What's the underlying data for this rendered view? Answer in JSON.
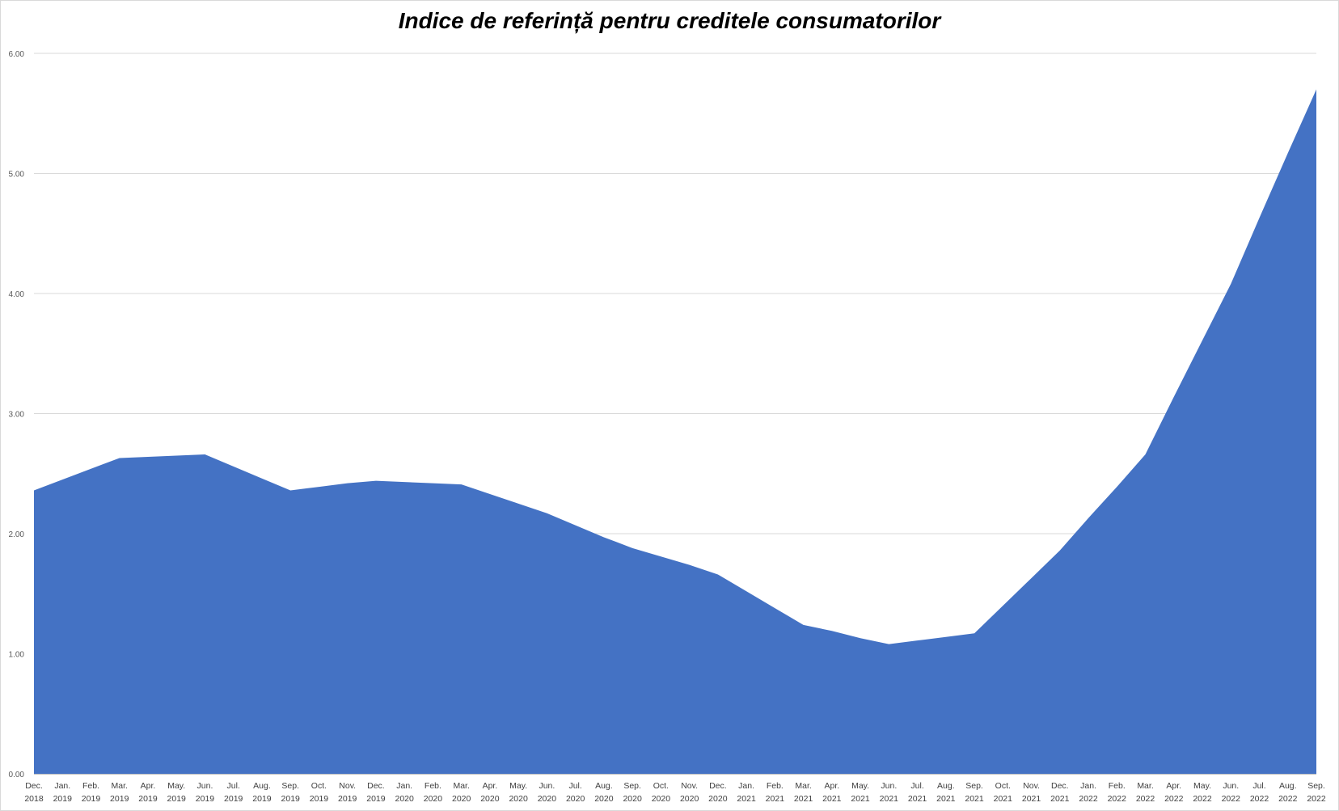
{
  "chart_data": {
    "type": "area",
    "title": "Indice de referință pentru creditele consumatorilor",
    "xlabel": "",
    "ylabel": "",
    "ylim": [
      0,
      6
    ],
    "yticks": [
      "0.00",
      "1.00",
      "2.00",
      "3.00",
      "4.00",
      "5.00",
      "6.00"
    ],
    "grid": true,
    "legend": "none",
    "colors": {
      "area": "#4472C4",
      "grid": "#d9d9d9",
      "axis": "#bfbfbf"
    },
    "categories": [
      [
        "Dec.",
        "2018"
      ],
      [
        "Jan.",
        "2019"
      ],
      [
        "Feb.",
        "2019"
      ],
      [
        "Mar.",
        "2019"
      ],
      [
        "Apr.",
        "2019"
      ],
      [
        "May.",
        "2019"
      ],
      [
        "Jun.",
        "2019"
      ],
      [
        "Jul.",
        "2019"
      ],
      [
        "Aug.",
        "2019"
      ],
      [
        "Sep.",
        "2019"
      ],
      [
        "Oct.",
        "2019"
      ],
      [
        "Nov.",
        "2019"
      ],
      [
        "Dec.",
        "2019"
      ],
      [
        "Jan.",
        "2020"
      ],
      [
        "Feb.",
        "2020"
      ],
      [
        "Mar.",
        "2020"
      ],
      [
        "Apr.",
        "2020"
      ],
      [
        "May.",
        "2020"
      ],
      [
        "Jun.",
        "2020"
      ],
      [
        "Jul.",
        "2020"
      ],
      [
        "Aug.",
        "2020"
      ],
      [
        "Sep.",
        "2020"
      ],
      [
        "Oct.",
        "2020"
      ],
      [
        "Nov.",
        "2020"
      ],
      [
        "Dec.",
        "2020"
      ],
      [
        "Jan.",
        "2021"
      ],
      [
        "Feb.",
        "2021"
      ],
      [
        "Mar.",
        "2021"
      ],
      [
        "Apr.",
        "2021"
      ],
      [
        "May.",
        "2021"
      ],
      [
        "Jun.",
        "2021"
      ],
      [
        "Jul.",
        "2021"
      ],
      [
        "Aug.",
        "2021"
      ],
      [
        "Sep.",
        "2021"
      ],
      [
        "Oct.",
        "2021"
      ],
      [
        "Nov.",
        "2021"
      ],
      [
        "Dec.",
        "2021"
      ],
      [
        "Jan.",
        "2022"
      ],
      [
        "Feb.",
        "2022"
      ],
      [
        "Mar.",
        "2022"
      ],
      [
        "Apr.",
        "2022"
      ],
      [
        "May.",
        "2022"
      ],
      [
        "Jun.",
        "2022"
      ],
      [
        "Jul.",
        "2022"
      ],
      [
        "Aug.",
        "2022"
      ],
      [
        "Sep.",
        "2022"
      ]
    ],
    "series": [
      {
        "values": [
          2.36,
          2.45,
          2.54,
          2.63,
          2.64,
          2.65,
          2.66,
          2.56,
          2.46,
          2.36,
          2.39,
          2.42,
          2.44,
          2.43,
          2.42,
          2.41,
          2.33,
          2.25,
          2.17,
          2.07,
          1.97,
          1.88,
          1.81,
          1.74,
          1.66,
          1.52,
          1.38,
          1.24,
          1.19,
          1.13,
          1.08,
          1.11,
          1.14,
          1.17,
          1.4,
          1.63,
          1.86,
          2.13,
          2.39,
          2.66,
          3.14,
          3.61,
          4.08,
          4.63,
          5.17,
          5.7
        ]
      }
    ]
  }
}
